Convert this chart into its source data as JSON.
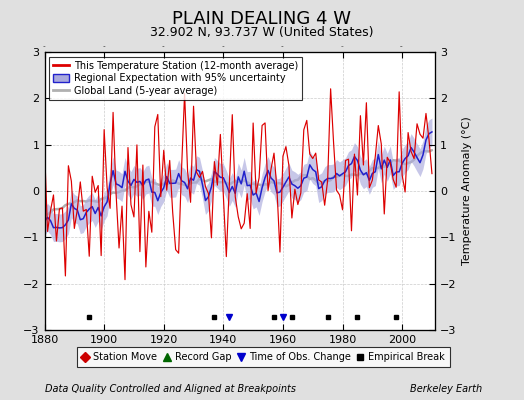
{
  "title": "PLAIN DEALING 4 W",
  "subtitle": "32.902 N, 93.737 W (United States)",
  "xlabel_left": "Data Quality Controlled and Aligned at Breakpoints",
  "xlabel_right": "Berkeley Earth",
  "ylabel": "Temperature Anomaly (°C)",
  "xlim": [
    1880,
    2011
  ],
  "ylim": [
    -3,
    3
  ],
  "yticks": [
    -3,
    -2,
    -1,
    0,
    1,
    2,
    3
  ],
  "xticks": [
    1880,
    1900,
    1920,
    1940,
    1960,
    1980,
    2000
  ],
  "background_color": "#e0e0e0",
  "plot_bg_color": "#ffffff",
  "station_color": "#dd0000",
  "regional_line_color": "#2222cc",
  "regional_fill_color": "#aaaadd",
  "global_color": "#b0b0b0",
  "title_fontsize": 13,
  "subtitle_fontsize": 9,
  "tick_fontsize": 8,
  "ylabel_fontsize": 8,
  "break_years": [
    1895,
    1937,
    1957,
    1963,
    1975,
    1985,
    1998
  ],
  "obs_change_years": [
    1942,
    1960
  ],
  "seed": 7
}
